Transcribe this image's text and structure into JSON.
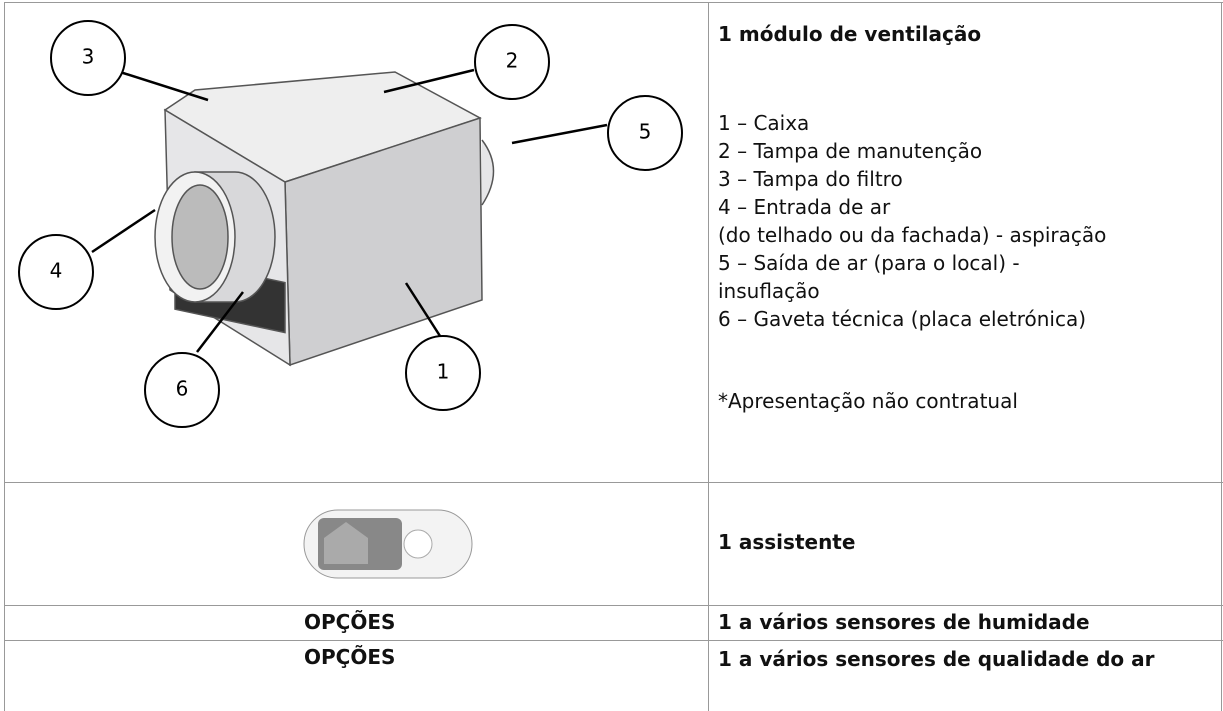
{
  "table": {
    "rows": [
      {
        "right": {
          "title": "1 módulo de ventilação",
          "lines": [
            "1 – Caixa",
            "2 – Tampa de manutenção",
            "3 – Tampa do filtro",
            "4 – Entrada de ar",
            "(do telhado ou da fachada) - aspiração",
            "5 – Saída de ar (para o local) -",
            "insuflação",
            "6 – Gaveta técnica (placa eletrónica)"
          ],
          "note": "*Apresentação não contratual"
        },
        "left": {
          "callouts": [
            "1",
            "2",
            "3",
            "4",
            "5",
            "6"
          ]
        }
      },
      {
        "right": "1 assistente"
      },
      {
        "left": "OPÇÕES",
        "right": "1 a vários sensores de humidade"
      },
      {
        "left": "OPÇÕES",
        "right": "1 a vários sensores de qualidade do ar"
      }
    ]
  }
}
